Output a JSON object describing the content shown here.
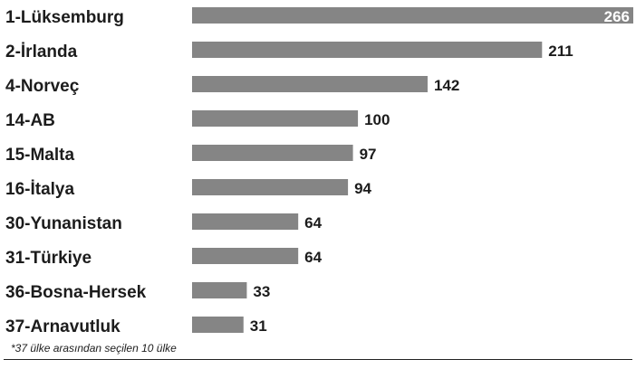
{
  "chart_data": {
    "type": "bar",
    "orientation": "horizontal",
    "categories": [
      "1-Lüksemburg",
      "2-İrlanda",
      "4-Norveç",
      "14-AB",
      "15-Malta",
      "16-İtalya",
      "30-Yunanistan",
      "31-Türkiye",
      "36-Bosna-Hersek",
      "37-Arnavutluk"
    ],
    "values": [
      266,
      211,
      142,
      100,
      97,
      94,
      64,
      64,
      33,
      31
    ],
    "value_labels": [
      "266",
      "211",
      "142",
      "100",
      "97",
      "94",
      "64",
      "64",
      "33",
      "31"
    ],
    "xlim": [
      0,
      266
    ],
    "grid": false,
    "legend": "none",
    "footnote": "*37 ülke arasından seçilen 10 ülke"
  },
  "colors": {
    "bar": "#858585",
    "text": "#1c1c1c",
    "background": "#ffffff"
  }
}
